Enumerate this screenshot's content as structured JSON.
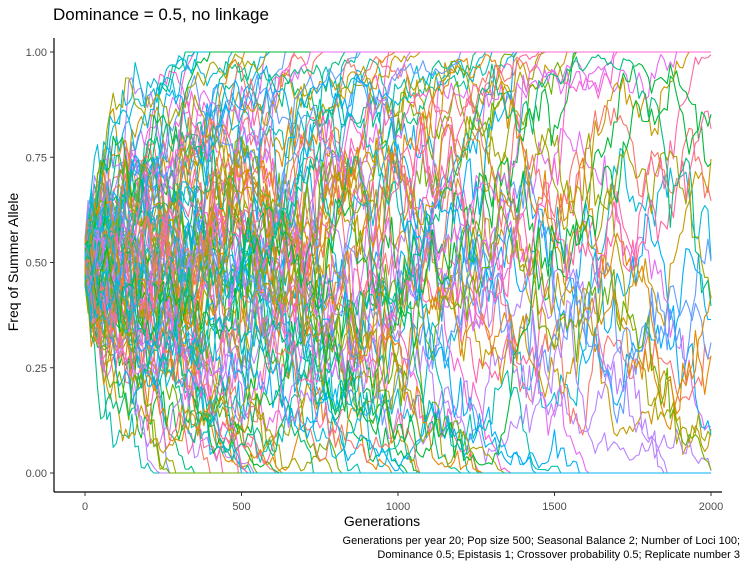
{
  "chart_data": {
    "type": "line",
    "title": "Dominance = 0.5, no linkage",
    "xlabel": "Generations",
    "ylabel": "Freq of Summer Allele",
    "xlim": [
      -100,
      2000
    ],
    "ylim": [
      0,
      1
    ],
    "x_ticks": [
      0,
      500,
      1000,
      1500,
      2000
    ],
    "x_tick_labels": [
      "0",
      "500",
      "1000",
      "1500",
      "2000"
    ],
    "y_ticks": [
      0,
      0.25,
      0.5,
      0.75,
      1.0
    ],
    "y_tick_labels": [
      "0.00",
      "0.25",
      "0.50",
      "0.75",
      "1.00"
    ],
    "grid": false,
    "legend": "none",
    "n_loci": 100,
    "start_frequency": 0.5,
    "series_colors": [
      "#F8766D",
      "#E58700",
      "#C99800",
      "#A3A500",
      "#6BB100",
      "#00BA38",
      "#00BF7D",
      "#00C0AF",
      "#00BCD8",
      "#00B0F6",
      "#619CFF",
      "#B983FF",
      "#E76BF3",
      "#FD61D1",
      "#FF67A4"
    ],
    "caption_lines": [
      "Generations per year 20; Pop size 500; Seasonal Balance 2; Number of Loci 100;",
      "Dominance 0.5; Epistasis 1; Crossover probability 0.5; Replicate number 3"
    ]
  }
}
